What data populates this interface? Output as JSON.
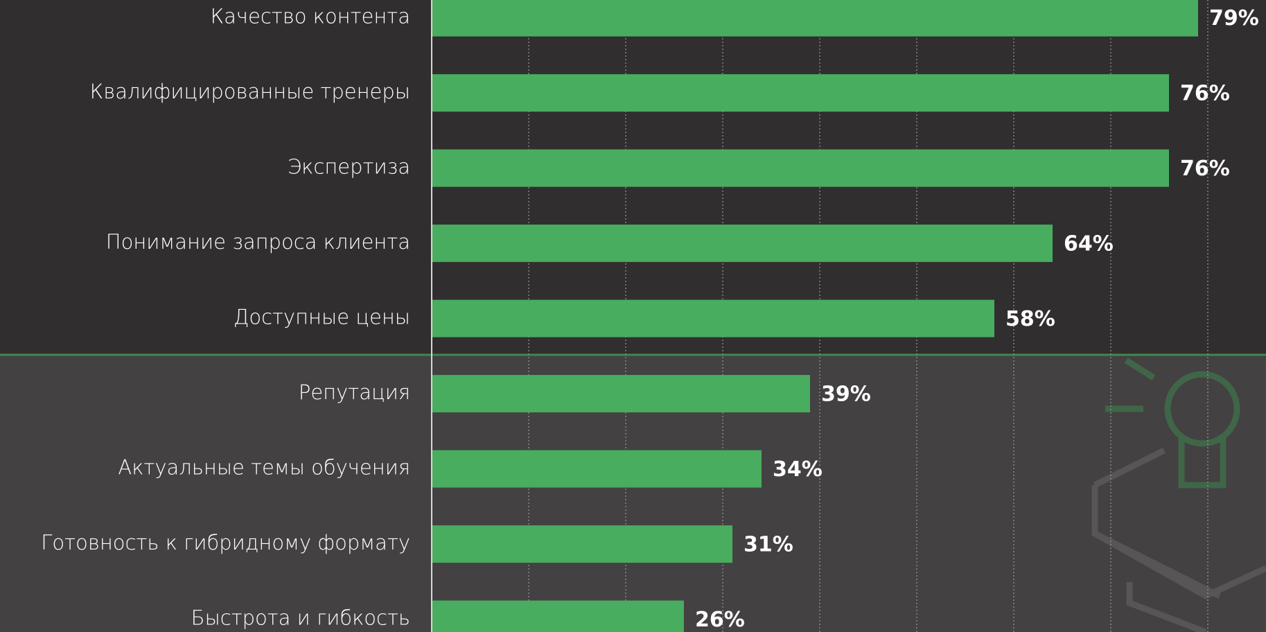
{
  "chart_data": {
    "type": "bar",
    "orientation": "horizontal",
    "categories": [
      "Качество контента",
      "Квалифицированные тренеры",
      "Экспертиза",
      "Понимание запроса клиента",
      "Доступные цены",
      "Репутация",
      "Актуальные темы обучения",
      "Готовность к гибридному формату",
      "Быстрота и гибкость"
    ],
    "values": [
      79,
      76,
      76,
      64,
      58,
      39,
      34,
      31,
      26
    ],
    "value_labels": [
      "79%",
      "76%",
      "76%",
      "64%",
      "58%",
      "39%",
      "34%",
      "31%",
      "26%"
    ],
    "color": "#48ad5e",
    "xlim": [
      0,
      86
    ],
    "xticks": [
      10,
      20,
      30,
      40,
      50,
      60,
      70,
      80
    ],
    "grid": true
  }
}
